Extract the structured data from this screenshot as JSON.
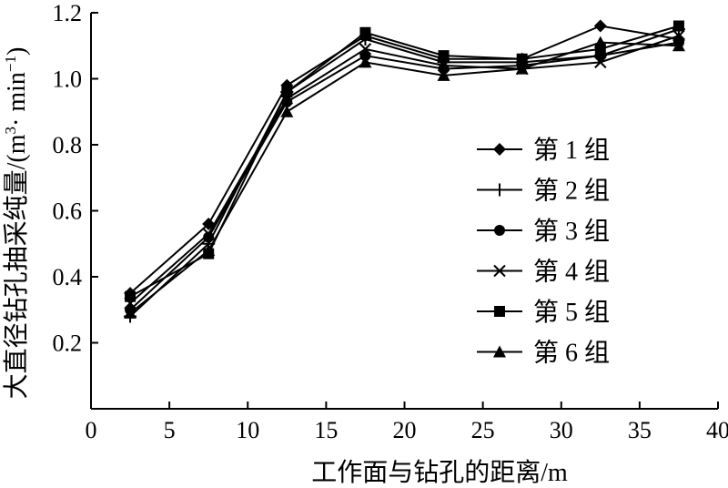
{
  "chart_data": {
    "type": "line",
    "xlabel": "工作面与钻孔的距离/m",
    "ylabel_main": "大直径钻孔抽采纯量/(m",
    "ylabel_sup1": "3",
    "ylabel_mid": "· min",
    "ylabel_sup2": "−1",
    "ylabel_end": ")",
    "xlim": [
      0,
      40
    ],
    "ylim": [
      0,
      1.2
    ],
    "xticks": [
      0,
      5,
      10,
      15,
      20,
      25,
      30,
      35,
      40
    ],
    "yticks": [
      0.2,
      0.4,
      0.6,
      0.8,
      1.0,
      1.2
    ],
    "ytick_labels": [
      "0.2",
      "0.4",
      "0.6",
      "0.8",
      "1.0",
      "1.2"
    ],
    "x": [
      2.5,
      7.5,
      12.5,
      17.5,
      22.5,
      27.5,
      32.5,
      37.5
    ],
    "legend_position": "right",
    "grid": false,
    "series": [
      {
        "name": "第 1 组",
        "marker": "diamond",
        "values": [
          0.35,
          0.56,
          0.98,
          1.13,
          1.06,
          1.06,
          1.16,
          1.12
        ]
      },
      {
        "name": "第 2 组",
        "marker": "plus",
        "values": [
          0.28,
          0.5,
          0.96,
          1.12,
          1.05,
          1.05,
          1.07,
          1.15
        ]
      },
      {
        "name": "第 3 组",
        "marker": "circle",
        "values": [
          0.3,
          0.52,
          0.93,
          1.07,
          1.03,
          1.04,
          1.07,
          1.11
        ]
      },
      {
        "name": "第 4 组",
        "marker": "x",
        "values": [
          0.32,
          0.53,
          0.94,
          1.09,
          1.04,
          1.03,
          1.05,
          1.13
        ]
      },
      {
        "name": "第 5 组",
        "marker": "square",
        "values": [
          0.34,
          0.47,
          0.96,
          1.14,
          1.07,
          1.06,
          1.09,
          1.16
        ]
      },
      {
        "name": "第 6 组",
        "marker": "triangle",
        "values": [
          0.29,
          0.48,
          0.9,
          1.05,
          1.01,
          1.03,
          1.11,
          1.1
        ]
      }
    ]
  }
}
